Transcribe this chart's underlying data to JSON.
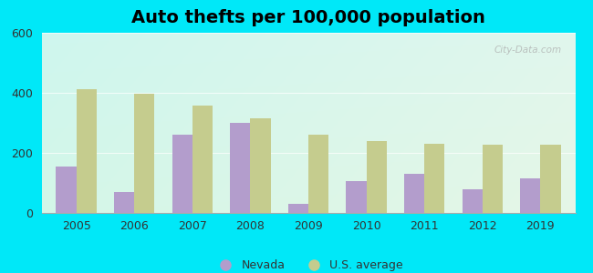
{
  "title": "Auto thefts per 100,000 population",
  "years": [
    2005,
    2006,
    2007,
    2008,
    2009,
    2010,
    2011,
    2012,
    2019
  ],
  "nevada": [
    155,
    70,
    260,
    300,
    30,
    105,
    130,
    80,
    115
  ],
  "us_avg": [
    413,
    398,
    358,
    315,
    260,
    240,
    230,
    228,
    228
  ],
  "nevada_color": "#b39dcc",
  "us_avg_color": "#c5cc8e",
  "outer_bg": "#00e8f8",
  "ylim": [
    0,
    600
  ],
  "yticks": [
    0,
    200,
    400,
    600
  ],
  "bar_width": 0.35,
  "title_fontsize": 14,
  "legend_nevada": "Nevada",
  "legend_us": "U.S. average",
  "watermark": "City-Data.com",
  "plot_bg_colors": [
    "#cff0e8",
    "#ffffff",
    "#e0f5e8"
  ],
  "grid_color": "#dddddd"
}
